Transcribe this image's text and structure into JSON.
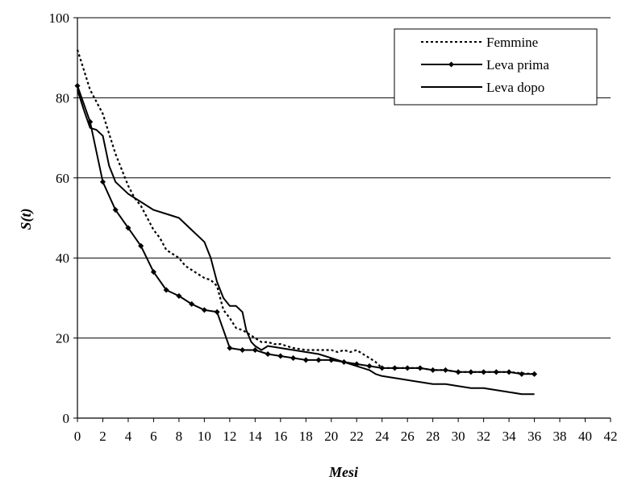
{
  "chart_data": {
    "type": "line",
    "title": "",
    "xlabel": "Mesi",
    "ylabel": "S(t)",
    "xlim": [
      0,
      42
    ],
    "ylim": [
      0,
      100
    ],
    "x_ticks": [
      0,
      2,
      4,
      6,
      8,
      10,
      12,
      14,
      16,
      18,
      20,
      22,
      24,
      26,
      28,
      30,
      32,
      34,
      36,
      38,
      40,
      42
    ],
    "y_ticks": [
      0,
      20,
      40,
      60,
      80,
      100
    ],
    "grid": "horizontal",
    "legend_position": "top-right",
    "series": [
      {
        "name": "Femmine",
        "style": "dotted",
        "color": "#000000",
        "x": [
          0,
          0.5,
          1,
          1.5,
          2,
          2.5,
          3,
          3.5,
          4,
          4.5,
          5,
          5.5,
          6,
          6.5,
          7,
          7.5,
          8,
          8.5,
          9,
          9.5,
          10,
          10.5,
          11,
          11.5,
          12,
          12.5,
          13,
          13.5,
          14,
          14.5,
          15,
          15.5,
          16,
          17,
          18,
          19,
          20,
          20.5,
          21,
          21.5,
          22,
          22.5,
          23,
          23.5,
          24,
          25,
          26,
          27,
          28,
          29,
          30,
          31,
          32,
          33,
          34,
          35,
          36
        ],
        "y": [
          92,
          87,
          82,
          79,
          76,
          71,
          66,
          62,
          58,
          55,
          53,
          50,
          47,
          45,
          42,
          41,
          40,
          38,
          37,
          36,
          35,
          34.5,
          33,
          27,
          25,
          22.5,
          22,
          21,
          20,
          19,
          19,
          18.5,
          18.5,
          17.5,
          17,
          17,
          17,
          16.5,
          17,
          16.5,
          17,
          16,
          15,
          14,
          12.5,
          12.5,
          12.5,
          12.5,
          12,
          12,
          11.5,
          11.5,
          11.5,
          11.5,
          11.5,
          11.2,
          11
        ]
      },
      {
        "name": "Leva prima",
        "style": "solid-markers",
        "color": "#000000",
        "x": [
          0,
          1,
          2,
          3,
          4,
          5,
          6,
          7,
          8,
          9,
          10,
          11,
          12,
          13,
          14,
          15,
          16,
          17,
          18,
          19,
          20,
          21,
          22,
          23,
          24,
          25,
          26,
          27,
          28,
          29,
          30,
          31,
          32,
          33,
          34,
          35,
          36
        ],
        "y": [
          83,
          74,
          59,
          52,
          47.5,
          43,
          36.5,
          32,
          30.5,
          28.5,
          27,
          26.5,
          17.5,
          17,
          17,
          16,
          15.5,
          15,
          14.5,
          14.5,
          14.5,
          14,
          13.5,
          13,
          12.5,
          12.5,
          12.5,
          12.5,
          12,
          12,
          11.5,
          11.5,
          11.5,
          11.5,
          11.5,
          11,
          11
        ]
      },
      {
        "name": "Leva dopo",
        "style": "solid",
        "color": "#000000",
        "x": [
          0,
          0.5,
          1,
          1.5,
          2,
          2.5,
          3,
          4,
          5,
          6,
          7,
          8,
          9,
          10,
          10.5,
          11,
          11.5,
          12,
          12.5,
          13,
          13.3,
          13.7,
          14,
          14.5,
          15,
          16,
          17,
          18,
          19,
          20,
          21,
          22,
          23,
          23.5,
          24,
          25,
          26,
          27,
          28,
          29,
          30,
          31,
          32,
          33,
          34,
          35,
          36
        ],
        "y": [
          82,
          77,
          72.5,
          72,
          70.5,
          63,
          59,
          56,
          54,
          52,
          51,
          50,
          47,
          44,
          40,
          34,
          30,
          28,
          28,
          26.5,
          22,
          19,
          18,
          17,
          18,
          17.5,
          17,
          16.5,
          16,
          15,
          14,
          13,
          12,
          11,
          10.5,
          10,
          9.5,
          9,
          8.5,
          8.5,
          8,
          7.5,
          7.5,
          7,
          6.5,
          6,
          6
        ]
      }
    ]
  }
}
